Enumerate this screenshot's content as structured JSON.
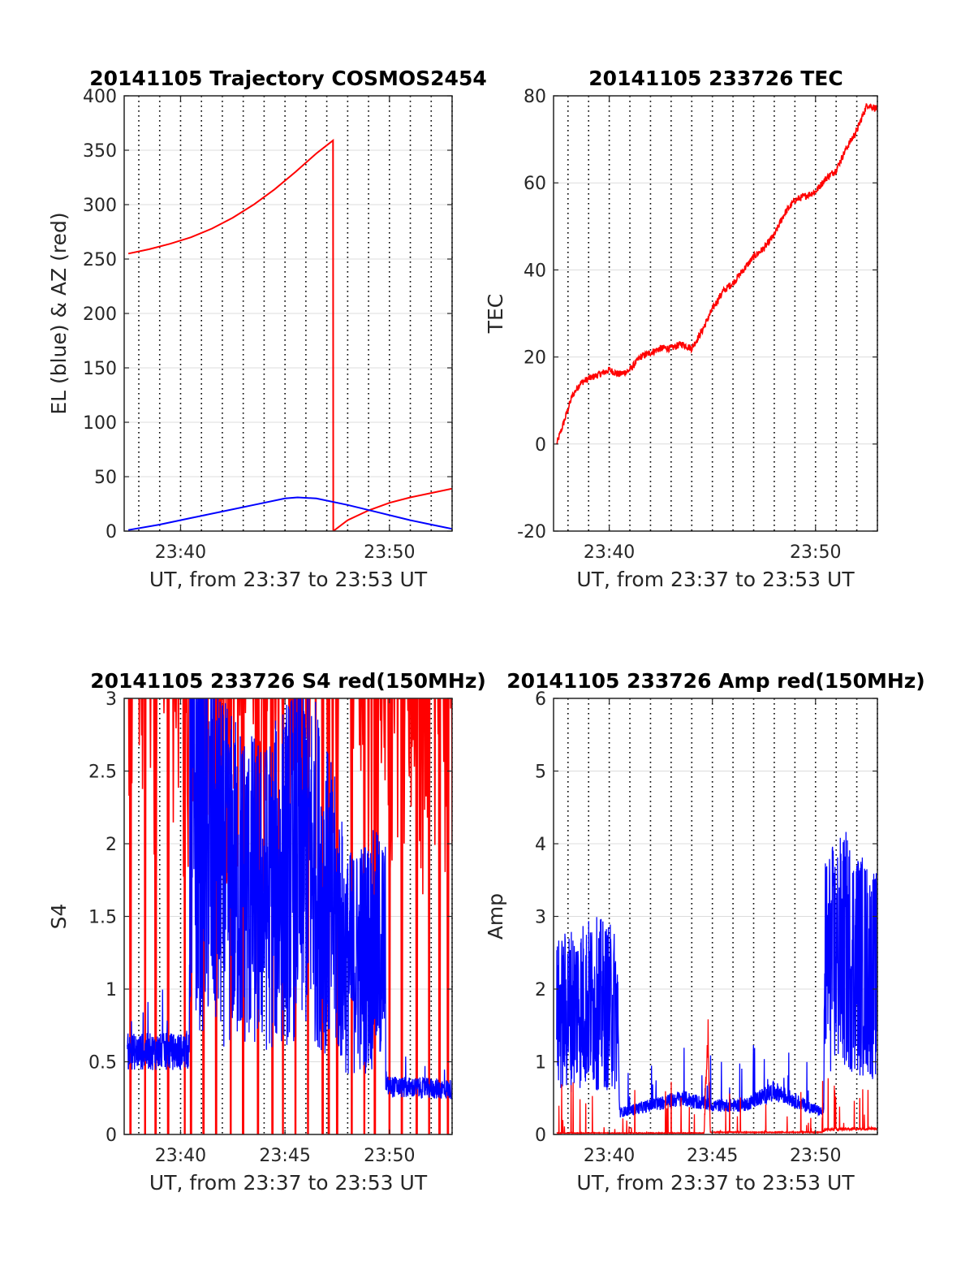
{
  "colors": {
    "el_series": "#0000ff",
    "az_series": "#ff0000",
    "axis": "#262626",
    "grid": "#dcdcdc"
  },
  "chart_data": [
    {
      "id": "trajectory",
      "type": "line",
      "title": "20141105 Trajectory COSMOS2454",
      "xlabel": "UT, from 23:37 to 23:53 UT",
      "ylabel": "EL (blue) & AZ (red)",
      "xlim": [
        37.3,
        53.0
      ],
      "ylim": [
        0,
        400
      ],
      "xticks": [
        40,
        50
      ],
      "xtick_labels": [
        "23:40",
        "23:50"
      ],
      "yticks": [
        0,
        50,
        100,
        150,
        200,
        250,
        300,
        350,
        400
      ],
      "ytick_labels": [
        "0",
        "50",
        "100",
        "150",
        "200",
        "250",
        "300",
        "350",
        "400"
      ],
      "grid": "on",
      "series": [
        {
          "color": "#ff0000",
          "style": "line",
          "x": [
            37.5,
            38.5,
            39.5,
            40.5,
            41.5,
            42.5,
            43.5,
            44.5,
            45.5,
            46.5,
            47.3,
            47.31,
            48.0,
            49.0,
            50.0,
            51.0,
            52.0,
            53.0
          ],
          "y": [
            255,
            259,
            264,
            270,
            278,
            288,
            300,
            314,
            330,
            347,
            359,
            0,
            10,
            19,
            26,
            31,
            35,
            39
          ]
        },
        {
          "color": "#0000ff",
          "style": "line",
          "x": [
            37.5,
            39.0,
            40.5,
            42.0,
            43.5,
            45.0,
            45.6,
            46.5,
            48.0,
            49.5,
            51.0,
            52.0,
            53.0
          ],
          "y": [
            1,
            6,
            12,
            18,
            24,
            30,
            31,
            30,
            24,
            17,
            10,
            6,
            2
          ]
        }
      ]
    },
    {
      "id": "tec",
      "type": "line",
      "title": "20141105 233726 TEC",
      "xlabel": "UT, from 23:37 to 23:53 UT",
      "ylabel": "TEC",
      "xlim": [
        37.3,
        53.0
      ],
      "ylim": [
        -20,
        80
      ],
      "xticks": [
        40,
        50
      ],
      "xtick_labels": [
        "23:40",
        "23:50"
      ],
      "yticks": [
        -20,
        0,
        20,
        40,
        60,
        80
      ],
      "ytick_labels": [
        "-20",
        "0",
        "20",
        "40",
        "60",
        "80"
      ],
      "grid": "on",
      "series": [
        {
          "color": "#ff0000",
          "style": "noisy-line",
          "x": [
            37.45,
            37.8,
            38.2,
            38.6,
            39.0,
            39.5,
            40.0,
            40.5,
            41.0,
            41.5,
            42.0,
            42.5,
            43.0,
            43.5,
            44.0,
            44.5,
            45.0,
            45.5,
            46.0,
            46.5,
            47.0,
            47.5,
            48.0,
            48.5,
            49.0,
            49.5,
            50.0,
            50.5,
            51.0,
            51.5,
            52.0,
            52.5,
            53.0
          ],
          "y": [
            0,
            5,
            11,
            14,
            15,
            16,
            17,
            16,
            17,
            20,
            21,
            22,
            22,
            23,
            22,
            26,
            31,
            35,
            37,
            40,
            43,
            45,
            48,
            53,
            56,
            57,
            58,
            61,
            63,
            68,
            72,
            78,
            77
          ]
        }
      ]
    },
    {
      "id": "s4",
      "type": "line",
      "title": "20141105 233726 S4 red(150MHz)",
      "xlabel": "UT, from 23:37 to 23:53 UT",
      "ylabel": "S4",
      "xlim": [
        37.3,
        53.0
      ],
      "ylim": [
        0,
        3
      ],
      "xticks": [
        40,
        45,
        50
      ],
      "xtick_labels": [
        "23:40",
        "23:45",
        "23:50"
      ],
      "yticks": [
        0,
        0.5,
        1,
        1.5,
        2,
        2.5,
        3
      ],
      "ytick_labels": [
        "0",
        "0.5",
        "1",
        "1.5",
        "2",
        "2.5",
        "3"
      ],
      "grid": "on",
      "series": [
        {
          "color": "#ff0000",
          "style": "spikes",
          "x_range": [
            37.4,
            53.0
          ],
          "dropouts": [
            37.6,
            38.3,
            38.8,
            39.4,
            40.2,
            40.5,
            41.1,
            41.7,
            42.4,
            43.0,
            43.7,
            44.4,
            44.9,
            45.5,
            46.1,
            46.8,
            47.1,
            47.5,
            48.2,
            48.8,
            49.3,
            50.0,
            50.6,
            51.3,
            51.9,
            52.4,
            52.8
          ]
        },
        {
          "color": "#0000ff",
          "style": "noisy-band",
          "x": [
            37.45,
            40.4,
            40.45,
            42.0,
            44.0,
            46.0,
            47.5,
            48.0,
            49.0,
            49.8,
            49.85,
            53.0
          ],
          "y": [
            0.57,
            0.57,
            2.5,
            2.0,
            1.8,
            2.2,
            1.6,
            1.3,
            1.4,
            1.4,
            0.33,
            0.31
          ]
        }
      ]
    },
    {
      "id": "amp",
      "type": "line",
      "title": "20141105 233726 Amp red(150MHz)",
      "xlabel": "UT, from 23:37 to 23:53 UT",
      "ylabel": "Amp",
      "xlim": [
        37.3,
        53.0
      ],
      "ylim": [
        0,
        6
      ],
      "xticks": [
        40,
        45,
        50
      ],
      "xtick_labels": [
        "23:40",
        "23:45",
        "23:50"
      ],
      "yticks": [
        0,
        1,
        2,
        3,
        4,
        5,
        6
      ],
      "ytick_labels": [
        "0",
        "1",
        "2",
        "3",
        "4",
        "5",
        "6"
      ],
      "grid": "on",
      "series": [
        {
          "color": "#0000ff",
          "style": "noisy-band",
          "x": [
            37.45,
            38.5,
            39.5,
            40.4,
            40.5,
            42.0,
            43.5,
            45.0,
            46.5,
            48.0,
            49.5,
            50.4,
            50.45,
            51.5,
            53.0
          ],
          "y": [
            1.8,
            2.0,
            2.0,
            1.9,
            0.3,
            0.4,
            0.5,
            0.4,
            0.4,
            0.6,
            0.4,
            0.3,
            2.6,
            2.8,
            2.4
          ]
        },
        {
          "color": "#ff0000",
          "style": "noisy-band",
          "x": [
            37.45,
            44.6,
            44.7,
            44.8,
            44.9,
            50.3,
            50.5,
            53.0
          ],
          "y": [
            0.02,
            0.02,
            0.9,
            1.2,
            0.03,
            0.03,
            0.07,
            0.08
          ]
        }
      ]
    }
  ]
}
